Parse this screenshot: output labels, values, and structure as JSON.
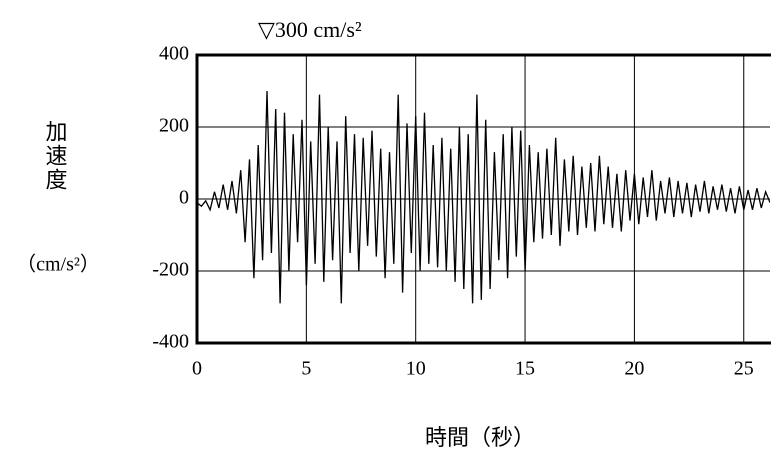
{
  "chart_data": {
    "type": "line",
    "annotation": "▽300 cm/s²",
    "y_label": "加速度",
    "y_unit": "（cm/s²）",
    "x_label": "時間（秒）",
    "xlim": [
      0,
      26.2
    ],
    "ylim": [
      -400,
      400
    ],
    "xticks": [
      0,
      5,
      10,
      15,
      20,
      25
    ],
    "yticks": [
      400,
      200,
      0,
      -200,
      -400
    ],
    "grid": true,
    "series": [
      {
        "color": "#000000",
        "x": [
          0,
          0.2,
          0.4,
          0.6,
          0.8,
          1,
          1.2,
          1.4,
          1.6,
          1.8,
          2,
          2.2,
          2.4,
          2.6,
          2.8,
          3,
          3.2,
          3.4,
          3.6,
          3.8,
          4,
          4.2,
          4.4,
          4.6,
          4.8,
          5,
          5.2,
          5.4,
          5.6,
          5.8,
          6,
          6.2,
          6.4,
          6.6,
          6.8,
          7,
          7.2,
          7.4,
          7.6,
          7.8,
          8,
          8.2,
          8.4,
          8.6,
          8.8,
          9,
          9.2,
          9.4,
          9.6,
          9.8,
          10,
          10.2,
          10.4,
          10.6,
          10.8,
          11,
          11.2,
          11.4,
          11.6,
          11.8,
          12,
          12.2,
          12.4,
          12.6,
          12.8,
          13,
          13.2,
          13.4,
          13.6,
          13.8,
          14,
          14.2,
          14.4,
          14.6,
          14.8,
          15,
          15.2,
          15.4,
          15.6,
          15.8,
          16,
          16.2,
          16.4,
          16.6,
          16.8,
          17,
          17.2,
          17.4,
          17.6,
          17.8,
          18,
          18.2,
          18.4,
          18.6,
          18.8,
          19,
          19.2,
          19.4,
          19.6,
          19.8,
          20,
          20.2,
          20.4,
          20.6,
          20.8,
          21,
          21.2,
          21.4,
          21.6,
          21.8,
          22,
          22.2,
          22.4,
          22.6,
          22.8,
          23,
          23.2,
          23.4,
          23.6,
          23.8,
          24,
          24.2,
          24.4,
          24.6,
          24.8,
          25,
          25.2,
          25.4,
          25.6,
          25.8,
          26,
          26.2
        ],
        "values": [
          -10,
          -20,
          -5,
          -30,
          20,
          -25,
          40,
          -30,
          50,
          -40,
          80,
          -120,
          110,
          -220,
          150,
          -170,
          300,
          -150,
          250,
          -290,
          240,
          -200,
          180,
          -120,
          220,
          -240,
          160,
          -180,
          290,
          -230,
          200,
          -170,
          160,
          -290,
          230,
          -150,
          180,
          -200,
          170,
          -130,
          190,
          -160,
          140,
          -220,
          130,
          -180,
          290,
          -260,
          210,
          -150,
          230,
          -200,
          240,
          -180,
          150,
          -190,
          170,
          -200,
          140,
          -230,
          200,
          -250,
          180,
          -290,
          290,
          -280,
          220,
          -250,
          130,
          -170,
          180,
          -220,
          200,
          -160,
          190,
          -200,
          150,
          -120,
          130,
          -110,
          140,
          -100,
          170,
          -130,
          110,
          -90,
          120,
          -100,
          90,
          -80,
          100,
          -90,
          120,
          -70,
          90,
          -80,
          70,
          -90,
          80,
          -60,
          70,
          -70,
          60,
          -50,
          80,
          -60,
          50,
          -40,
          60,
          -50,
          50,
          -40,
          45,
          -50,
          40,
          -35,
          50,
          -40,
          35,
          -30,
          40,
          -35,
          30,
          -40,
          35,
          -30,
          25,
          -30,
          30,
          -25,
          20,
          -10
        ]
      }
    ]
  }
}
